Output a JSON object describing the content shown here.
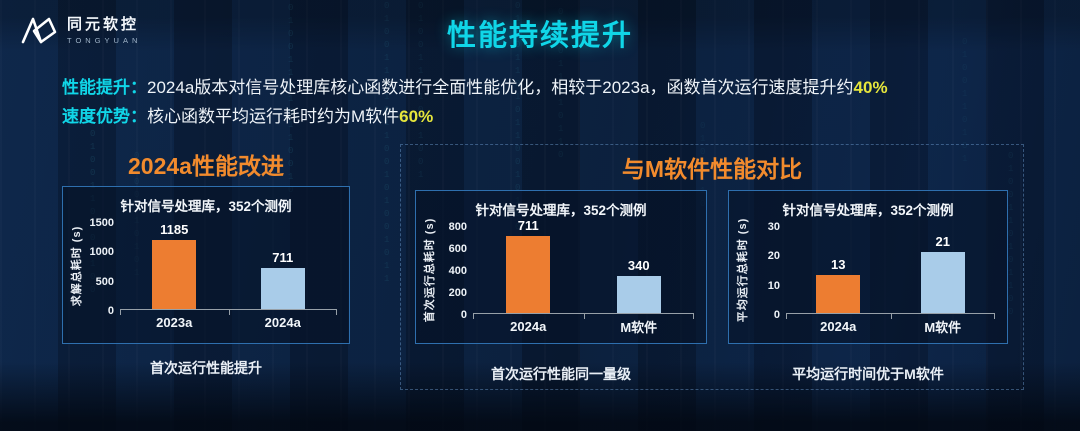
{
  "colors": {
    "cyan": "#10d6e8",
    "orange": "#f28b2d",
    "yellow": "#e6e63c",
    "bar_orange": "#ed7d31",
    "bar_blue": "#a9cce9",
    "box_border": "#2e6fae"
  },
  "logo": {
    "name_cn": "同元软控",
    "name_en": "TONGYUAN"
  },
  "title": "性能持续提升",
  "bullets": [
    {
      "label": "性能提升：",
      "text": "2024a版本对信号处理库核心函数进行全面性能优化，相较于2023a，函数首次运行速度提升约",
      "highlight": "40%"
    },
    {
      "label": "速度优势：",
      "text": "核心函数平均运行耗时约为M软件",
      "highlight": "60%"
    }
  ],
  "sections": {
    "left": {
      "heading": "2024a性能改进",
      "caption": "首次运行性能提升"
    },
    "right": {
      "heading": "与M软件性能对比",
      "captions": [
        "首次运行性能同一量级",
        "平均运行时间优于M软件"
      ]
    }
  },
  "chart_data": [
    {
      "type": "bar",
      "title": "针对信号处理库，352个测例",
      "ylabel": "求解总耗时 (s)",
      "categories": [
        "2023a",
        "2024a"
      ],
      "values": [
        1185,
        711
      ],
      "bar_colors": [
        "#ed7d31",
        "#a9cce9"
      ],
      "yticks": [
        0,
        500,
        1000,
        1500
      ],
      "ylim": [
        0,
        1500
      ],
      "grid": false,
      "caption": "首次运行性能提升"
    },
    {
      "type": "bar",
      "title": "针对信号处理库，352个测例",
      "ylabel": "首次运行总耗时 (s)",
      "categories": [
        "2024a",
        "M软件"
      ],
      "values": [
        711,
        340
      ],
      "bar_colors": [
        "#ed7d31",
        "#a9cce9"
      ],
      "yticks": [
        0,
        200,
        400,
        600,
        800
      ],
      "ylim": [
        0,
        800
      ],
      "grid": false,
      "caption": "首次运行性能同一量级"
    },
    {
      "type": "bar",
      "title": "针对信号处理库，352个测例",
      "ylabel": "平均运行总耗时 (s)",
      "categories": [
        "2024a",
        "M软件"
      ],
      "values": [
        13,
        21
      ],
      "bar_colors": [
        "#ed7d31",
        "#a9cce9"
      ],
      "yticks": [
        0,
        10,
        20,
        30
      ],
      "ylim": [
        0,
        30
      ],
      "grid": false,
      "caption": "平均运行时间优于M软件"
    }
  ],
  "decor": {
    "binary_digits": "0100110101100101001011010010110"
  }
}
